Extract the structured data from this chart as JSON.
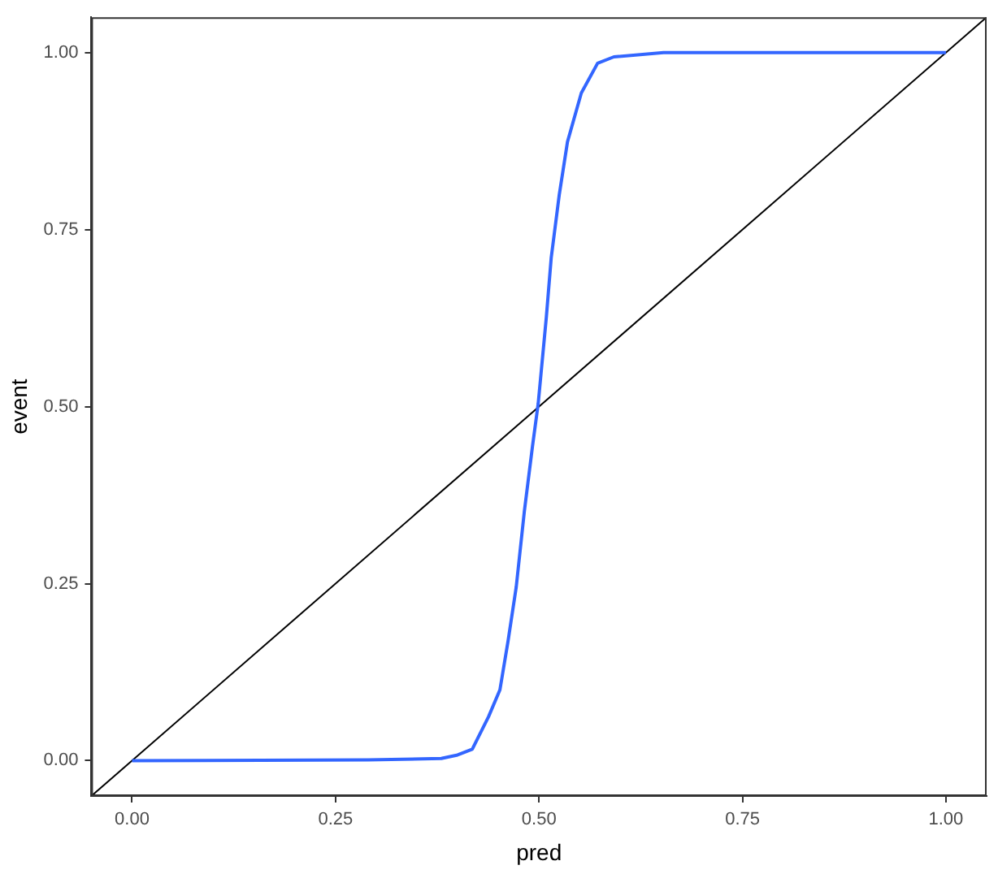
{
  "chart_data": {
    "type": "line",
    "xlabel": "pred",
    "ylabel": "event",
    "xlim": [
      -0.05,
      1.05
    ],
    "ylim": [
      -0.05,
      1.05
    ],
    "xticks": [
      {
        "value": 0,
        "label": "0.00"
      },
      {
        "value": 0.25,
        "label": "0.25"
      },
      {
        "value": 0.5,
        "label": "0.50"
      },
      {
        "value": 0.75,
        "label": "0.75"
      },
      {
        "value": 1,
        "label": "1.00"
      }
    ],
    "yticks": [
      {
        "value": 0,
        "label": "0.00"
      },
      {
        "value": 0.25,
        "label": "0.25"
      },
      {
        "value": 0.5,
        "label": "0.50"
      },
      {
        "value": 0.75,
        "label": "0.75"
      },
      {
        "value": 1,
        "label": "1.00"
      }
    ],
    "grid": false,
    "legend": false,
    "marker": "none",
    "line_style": "solid",
    "series": [
      {
        "type": "line",
        "color": "#3366ff",
        "x": [
          0,
          0.29,
          0.38,
          0.4,
          0.418,
          0.438,
          0.452,
          0.462,
          0.472,
          0.482,
          0.492,
          0.499,
          0.509,
          0.515,
          0.525,
          0.535,
          0.552,
          0.572,
          0.592,
          0.653,
          1.0
        ],
        "values": [
          0,
          0.001,
          0.003,
          0.008,
          0.016,
          0.062,
          0.1,
          0.169,
          0.245,
          0.352,
          0.444,
          0.504,
          0.626,
          0.71,
          0.8,
          0.874,
          0.943,
          0.985,
          0.994,
          1.0,
          1.0
        ]
      },
      {
        "type": "line",
        "color": "#000000",
        "x": [
          -0.05,
          1.05
        ],
        "values": [
          -0.05,
          1.05
        ]
      }
    ]
  }
}
